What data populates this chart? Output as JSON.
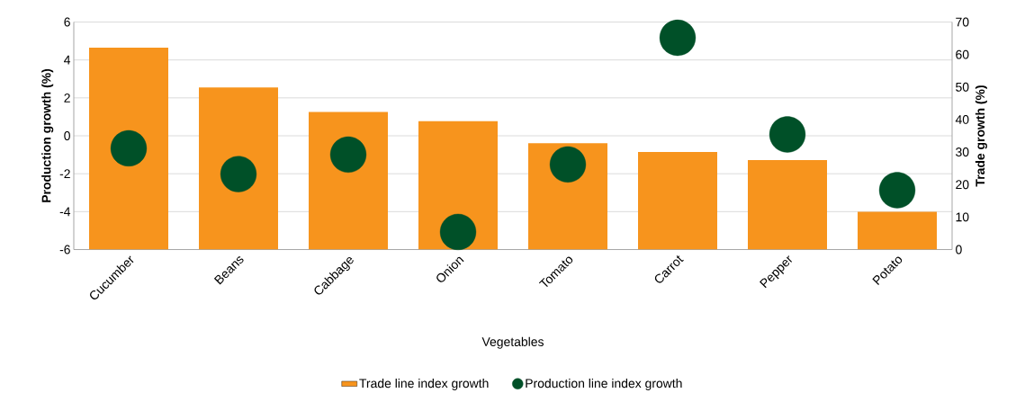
{
  "chart_data": {
    "type": "bar",
    "xlabel": "Vegetables",
    "ylabel": "Production growth (%)",
    "y2label": "Trade growth (%)",
    "categories": [
      "Cucumber",
      "Beans",
      "Cabbage",
      "Onion",
      "Tomato",
      "Carrot",
      "Pepper",
      "Potato"
    ],
    "series": [
      {
        "name": "Trade line index growth",
        "axis": "y2",
        "color": "#f7941d",
        "values": [
          62.1,
          49.9,
          42.3,
          39.5,
          32.7,
          30.0,
          27.5,
          11.6
        ]
      },
      {
        "name": "Production line index growth",
        "type": "scatter",
        "color": "#005028",
        "values": [
          -0.66,
          -2.02,
          -0.99,
          -5.07,
          -1.51,
          5.17,
          0.07,
          -2.87
        ]
      }
    ],
    "ylim": [
      -6,
      6
    ],
    "yticks": [
      -6,
      -4,
      -2,
      0,
      2,
      4,
      6
    ],
    "y2lim": [
      0,
      70
    ],
    "y2ticks": [
      0,
      10,
      20,
      30,
      40,
      50,
      60,
      70
    ],
    "grid": "y",
    "legend": "bottom"
  }
}
